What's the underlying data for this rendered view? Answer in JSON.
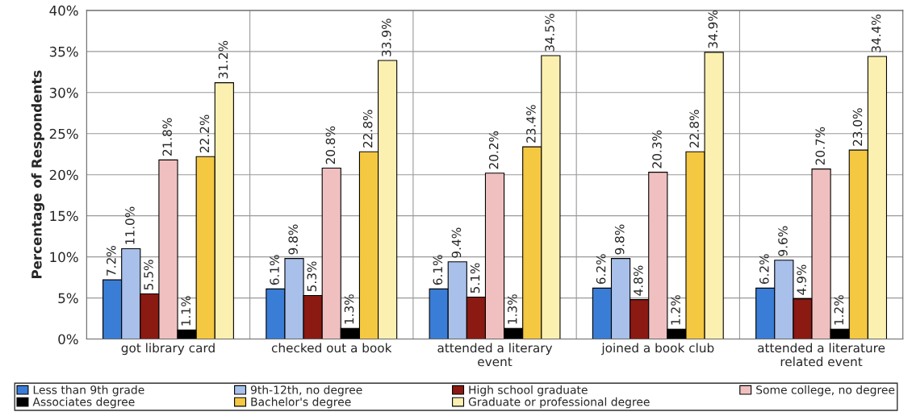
{
  "chart_data": {
    "type": "bar",
    "ylabel": "Percentage of Respondents",
    "categories": [
      "got library card",
      "checked out a book",
      "attended a literary\nevent",
      "joined a book club",
      "attended a literature\nrelated event"
    ],
    "series": [
      {
        "name": "Less than 9th grade",
        "color": "#3a7dd6",
        "values": [
          7.2,
          6.1,
          6.1,
          6.2,
          6.2
        ],
        "value_labels": [
          "7.2%",
          "6.1%",
          "6.1%",
          "6.2%",
          "6.2%"
        ]
      },
      {
        "name": "9th-12th, no degree",
        "color": "#a8c0ea",
        "values": [
          11.0,
          9.8,
          9.4,
          9.8,
          9.6
        ],
        "value_labels": [
          "11.0%",
          "9.8%",
          "9.4%",
          "9.8%",
          "9.6%"
        ]
      },
      {
        "name": "High school graduate",
        "color": "#8b1a12",
        "values": [
          5.5,
          5.3,
          5.1,
          4.8,
          4.9
        ],
        "value_labels": [
          "5.5%",
          "5.3%",
          "5.1%",
          "4.8%",
          "4.9%"
        ]
      },
      {
        "name": "Some college, no degree",
        "color": "#f0c0c0",
        "values": [
          21.8,
          20.8,
          20.2,
          20.3,
          20.7
        ],
        "value_labels": [
          "21.8%",
          "20.8%",
          "20.2%",
          "20.3%",
          "20.7%"
        ]
      },
      {
        "name": "Associates degree",
        "color": "#000000",
        "values": [
          1.1,
          1.3,
          1.3,
          1.2,
          1.2
        ],
        "value_labels": [
          "1.1%",
          "1.3%",
          "1.3%",
          "1.2%",
          "1.2%"
        ]
      },
      {
        "name": "Bachelor's degree",
        "color": "#f5c842",
        "values": [
          22.2,
          22.8,
          23.4,
          22.8,
          23.0
        ],
        "value_labels": [
          "22.2%",
          "22.8%",
          "23.4%",
          "22.8%",
          "23.0%"
        ]
      },
      {
        "name": "Graduate or professional degree",
        "color": "#fbf0b0",
        "values": [
          31.2,
          33.9,
          34.5,
          34.9,
          34.4
        ],
        "value_labels": [
          "31.2%",
          "33.9%",
          "34.5%",
          "34.9%",
          "34.4%"
        ]
      }
    ],
    "ylim": [
      0,
      40
    ],
    "yticks": [
      {
        "value": 0,
        "label": "0%"
      },
      {
        "value": 5,
        "label": "5%"
      },
      {
        "value": 10,
        "label": "10%"
      },
      {
        "value": 15,
        "label": "15%"
      },
      {
        "value": 20,
        "label": "20%"
      },
      {
        "value": 25,
        "label": "25%"
      },
      {
        "value": 30,
        "label": "30%"
      },
      {
        "value": 35,
        "label": "35%"
      },
      {
        "value": 40,
        "label": "40%"
      }
    ],
    "grid": "y",
    "legend": "bottom"
  }
}
